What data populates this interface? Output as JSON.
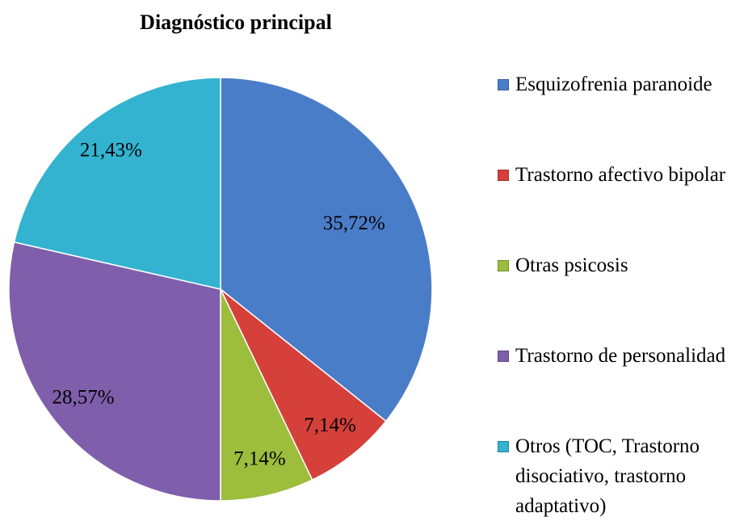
{
  "chart_data": {
    "type": "pie",
    "title": "Diagnóstico principal",
    "categories": [
      "Esquizofrenia paranoide",
      "Trastorno afectivo bipolar",
      "Otras psicosis",
      "Trastorno de personalidad",
      "Otros (TOC, Trastorno disociativo, trastorno adaptativo)"
    ],
    "values": [
      35.72,
      7.14,
      7.14,
      28.57,
      21.43
    ],
    "value_labels": [
      "35,72%",
      "7,14%",
      "7,14%",
      "28,57%",
      "21,43%"
    ],
    "colors": [
      "#4a7dc8",
      "#d6403b",
      "#9dbd3d",
      "#7f5fab",
      "#33b3d0"
    ],
    "legend": "right"
  }
}
